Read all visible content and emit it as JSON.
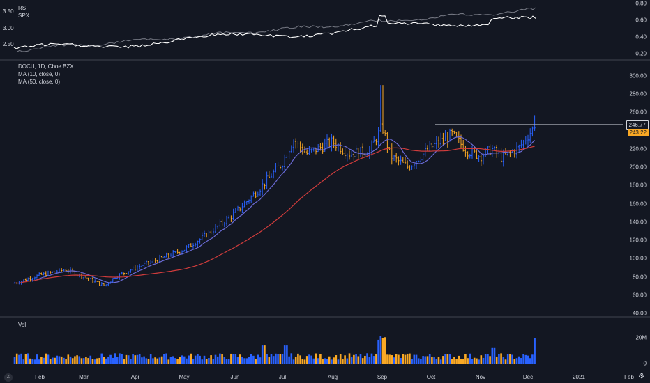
{
  "rs_pane": {
    "legend_rs": "RS",
    "legend_spx": "SPX",
    "left_ticks": [
      "3.50",
      "3.00",
      "2.50"
    ],
    "right_ticks": [
      "0.80",
      "0.60",
      "0.40",
      "0.20"
    ]
  },
  "price_pane": {
    "legend_title": "DOCU, 1D, Cboe BZX",
    "legend_ma10": "MA (10, close, 0)",
    "legend_ma50": "MA (50, close, 0)",
    "ticks": [
      "300.00",
      "280.00",
      "260.00",
      "240.00",
      "220.00",
      "200.00",
      "180.00",
      "160.00",
      "140.00",
      "120.00",
      "100.00",
      "80.00",
      "60.00",
      "40.00"
    ],
    "label_high": "246.77",
    "label_last": "243.22"
  },
  "volume_pane": {
    "legend": "Vol",
    "ticks": [
      "20M",
      "0"
    ]
  },
  "time_axis": {
    "labels": [
      "Feb",
      "Mar",
      "Apr",
      "May",
      "Jun",
      "Jul",
      "Aug",
      "Sep",
      "Oct",
      "Nov",
      "Dec",
      "2021",
      "Feb"
    ]
  },
  "controls": {
    "zoom_label": "Z"
  },
  "colors": {
    "background": "#131722",
    "up": "#2962ff",
    "down": "#f9a825",
    "ma10": "#6b6bd6",
    "ma50": "#d03c3c",
    "rs": "#ffffff",
    "spx": "#787b86",
    "grid_divider": "#2a2e39"
  },
  "chart_data": {
    "type": "ohlc-bar",
    "symbol": "DOCU",
    "interval": "1D",
    "price_ylim": [
      40,
      300
    ],
    "approx_closes": [
      {
        "x": "Jan",
        "y": 73
      },
      {
        "x": "Feb",
        "y": 86
      },
      {
        "x": "Mar",
        "y": 75
      },
      {
        "x": "Apr",
        "y": 92
      },
      {
        "x": "May",
        "y": 108
      },
      {
        "x": "Jun",
        "y": 150
      },
      {
        "x": "Jul",
        "y": 212
      },
      {
        "x": "Aug",
        "y": 222
      },
      {
        "x": "Sep",
        "y": 210
      },
      {
        "x": "Oct",
        "y": 228
      },
      {
        "x": "Nov",
        "y": 218
      },
      {
        "x": "Dec",
        "y": 243.22
      }
    ],
    "volume_ylim": [
      0,
      30000000
    ]
  }
}
